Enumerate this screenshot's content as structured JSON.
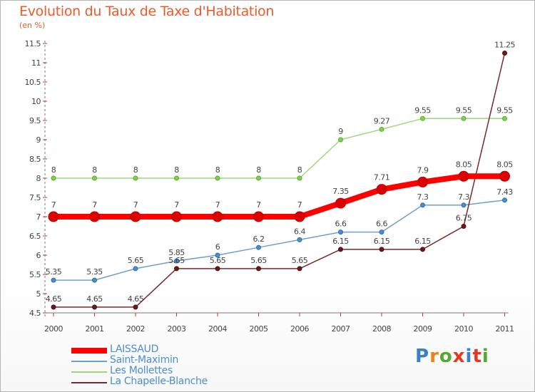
{
  "header": {
    "title": "Evolution du Taux de Taxe d'Habitation",
    "subtitle": "(en %)"
  },
  "brand": {
    "name": "Proxiti",
    "letter_colors": [
      "#3a80c8",
      "#e8821e",
      "#55a832",
      "#e8371e",
      "#3a80c8",
      "#e8371e",
      "#55a832"
    ]
  },
  "chart_data": {
    "type": "line",
    "x": [
      "2000",
      "2001",
      "2002",
      "2003",
      "2004",
      "2005",
      "2006",
      "2007",
      "2008",
      "2009",
      "2010",
      "2011"
    ],
    "ylim": [
      4.5,
      11.5
    ],
    "yticks": [
      "4.5",
      "5",
      "5.5",
      "6",
      "6.5",
      "7",
      "7.5",
      "8",
      "8.5",
      "9",
      "9.5",
      "10",
      "10.5",
      "11",
      "11.5"
    ],
    "grid": false,
    "legend_position": "bottom-left",
    "series": [
      {
        "name": "LAISSAUD",
        "color": "#ff0000",
        "values": [
          7,
          7,
          7,
          7,
          7,
          7,
          7,
          7.35,
          7.71,
          7.9,
          8.05,
          8.05
        ],
        "labels": [
          "7",
          "7",
          "7",
          "7",
          "7",
          "7",
          "7",
          "7.35",
          "7.71",
          "7.9",
          "8.05",
          "8.05"
        ]
      },
      {
        "name": "Saint-Maximin",
        "color": "#6fa0cc",
        "values": [
          5.35,
          5.35,
          5.65,
          5.85,
          6,
          6.2,
          6.4,
          6.6,
          6.6,
          7.3,
          7.3,
          7.43
        ],
        "labels": [
          "5.35",
          "5.35",
          "5.65",
          "5.85",
          "6",
          "6.2",
          "6.4",
          "6.6",
          "6.6",
          "7.3",
          "7.3",
          "7.43"
        ]
      },
      {
        "name": "Les Mollettes",
        "color": "#9fd67a",
        "values": [
          8,
          8,
          8,
          8,
          8,
          8,
          8,
          9,
          9.27,
          9.55,
          9.55,
          9.55
        ],
        "labels": [
          "8",
          "8",
          "8",
          "8",
          "8",
          "8",
          "8",
          "9",
          "9.27",
          "9.55",
          "9.55",
          "9.55"
        ]
      },
      {
        "name": "La Chapelle-Blanche",
        "color": "#7a2828",
        "values": [
          4.65,
          4.65,
          4.65,
          5.65,
          5.65,
          5.65,
          5.65,
          6.15,
          6.15,
          6.15,
          6.75,
          11.25
        ],
        "labels": [
          "4.65",
          "4.65",
          "4.65",
          "5.65",
          "5.65",
          "5.65",
          "5.65",
          "6.15",
          "6.15",
          "6.15",
          "6.75",
          "11.25"
        ]
      }
    ]
  }
}
